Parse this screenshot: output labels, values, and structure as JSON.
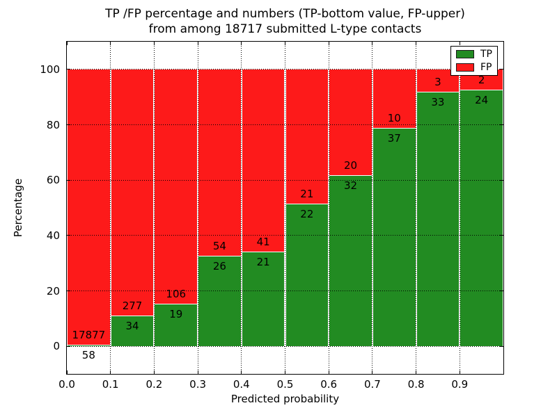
{
  "chart_data": {
    "type": "bar",
    "stacked": true,
    "title_line1": "TP /FP percentage and numbers (TP-bottom value, FP-upper)",
    "title_line2": "from among 18717 submitted L-type contacts",
    "xlabel": "Predicted probability",
    "ylabel": "Percentage",
    "xlim": [
      0.0,
      1.0
    ],
    "ylim": [
      -10,
      110
    ],
    "x_tick_labels": [
      "0.0",
      "0.1",
      "0.2",
      "0.3",
      "0.4",
      "0.5",
      "0.6",
      "0.7",
      "0.8",
      "0.9"
    ],
    "y_ticks": [
      0,
      20,
      40,
      60,
      80,
      100
    ],
    "y_tick_labels": [
      "0",
      "20",
      "40",
      "60",
      "80",
      "100"
    ],
    "grid": true,
    "grid_style": "dotted",
    "legend_position": "upper right",
    "legend": [
      {
        "label": "TP",
        "color": "#228b22"
      },
      {
        "label": "FP",
        "color": "#fd1a1a"
      }
    ],
    "total_contacts": 18717,
    "categories": [
      "0.0-0.1",
      "0.1-0.2",
      "0.2-0.3",
      "0.3-0.4",
      "0.4-0.5",
      "0.5-0.6",
      "0.6-0.7",
      "0.7-0.8",
      "0.8-0.9",
      "0.9-1.0"
    ],
    "series": [
      {
        "name": "TP",
        "counts": [
          58,
          34,
          19,
          26,
          21,
          22,
          32,
          37,
          33,
          24
        ]
      },
      {
        "name": "FP",
        "counts": [
          17877,
          277,
          106,
          54,
          41,
          21,
          20,
          10,
          3,
          2
        ]
      }
    ],
    "tp_percent": [
      0.32,
      10.93,
      15.2,
      32.5,
      33.87,
      51.16,
      61.54,
      78.72,
      91.67,
      92.31
    ]
  }
}
